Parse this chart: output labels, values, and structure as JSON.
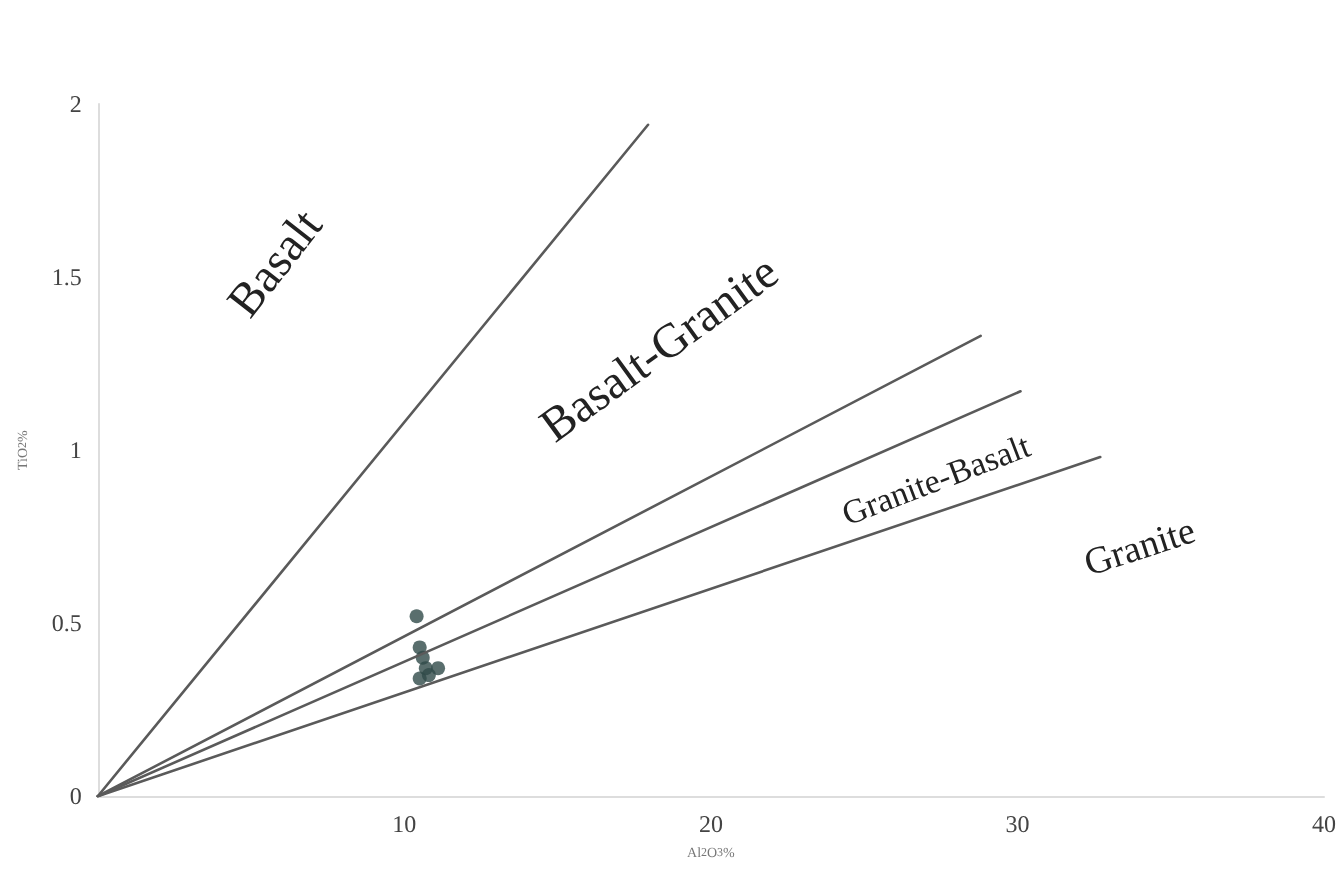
{
  "chart_data": {
    "type": "scatter",
    "xlabel": "Al$_{2}$O$_{3}$%",
    "ylabel": "TiO$_{2}$%",
    "xlim": [
      0,
      40
    ],
    "ylim": [
      0,
      2
    ],
    "xticks": [
      10,
      20,
      30,
      40
    ],
    "yticks": [
      0,
      0.5,
      1,
      1.5,
      2
    ],
    "grid": false,
    "series": [
      {
        "type": "line",
        "color": "#5a5a5a",
        "marker": "none",
        "line_style": "solid",
        "x": [
          0,
          17.95
        ],
        "values": [
          0,
          1.94
        ]
      },
      {
        "type": "line",
        "color": "#5a5a5a",
        "marker": "none",
        "line_style": "solid",
        "x": [
          0,
          28.8
        ],
        "values": [
          0,
          1.33
        ]
      },
      {
        "type": "line",
        "color": "#5a5a5a",
        "marker": "none",
        "line_style": "solid",
        "x": [
          0,
          30.1
        ],
        "values": [
          0,
          1.17
        ]
      },
      {
        "type": "line",
        "color": "#5a5a5a",
        "marker": "none",
        "line_style": "solid",
        "x": [
          0,
          32.7
        ],
        "values": [
          0,
          0.98
        ]
      },
      {
        "color": "#2f4a48",
        "marker": "circle",
        "x": [
          10.4,
          10.5,
          10.6,
          10.7,
          11.1,
          10.5,
          10.8
        ],
        "values": [
          0.52,
          0.43,
          0.4,
          0.37,
          0.37,
          0.34,
          0.35
        ]
      }
    ],
    "annotations": [
      "Basalt",
      "Basalt-Granite",
      "Granite-Basalt",
      "Granite"
    ]
  }
}
